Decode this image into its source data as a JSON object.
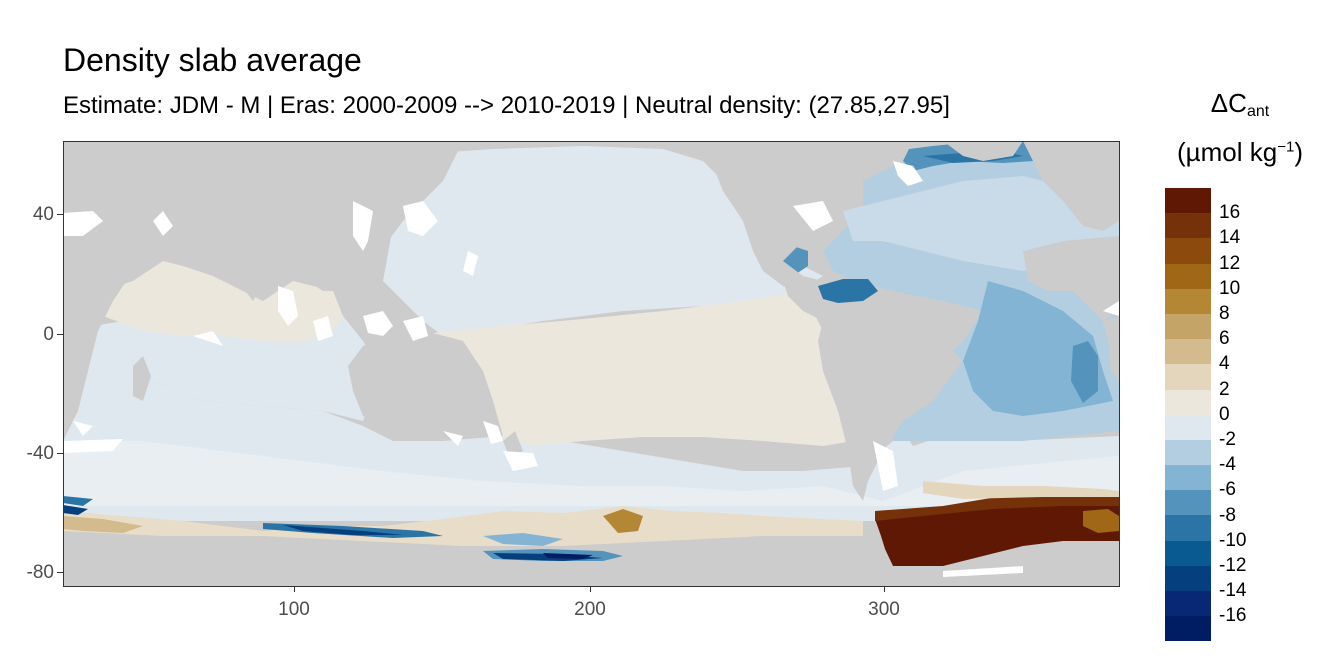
{
  "title": "Density slab average",
  "subtitle": "Estimate: JDM - M | Eras: 2000-2009 --> 2010-2019 | Neutral density: (27.85,27.95]",
  "legend": {
    "symbol": "ΔC",
    "subscript": "ant",
    "unit_main": "(µmol kg",
    "unit_exp": "−1",
    "unit_close": ")",
    "labels": [
      "16",
      "14",
      "12",
      "10",
      "8",
      "6",
      "4",
      "2",
      "0",
      "-2",
      "-4",
      "-6",
      "-8",
      "-10",
      "-12",
      "-14",
      "-16"
    ],
    "colors": [
      "#5e1803",
      "#74310a",
      "#8c4b0c",
      "#a06716",
      "#b48735",
      "#c4a467",
      "#d3bb8e",
      "#e4d6bd",
      "#ece7dd",
      "#dfe8ef",
      "#b3cee1",
      "#84b4d3",
      "#5393bc",
      "#2b74a6",
      "#095a90",
      "#063f7d",
      "#082775",
      "#001c62"
    ]
  },
  "axes": {
    "y_ticks": [
      "40",
      "0",
      "-40",
      "-80"
    ],
    "x_ticks": [
      "100",
      "200",
      "300"
    ]
  },
  "map": {
    "land_color": "#cccccc",
    "missing_color": "#ffffff"
  }
}
